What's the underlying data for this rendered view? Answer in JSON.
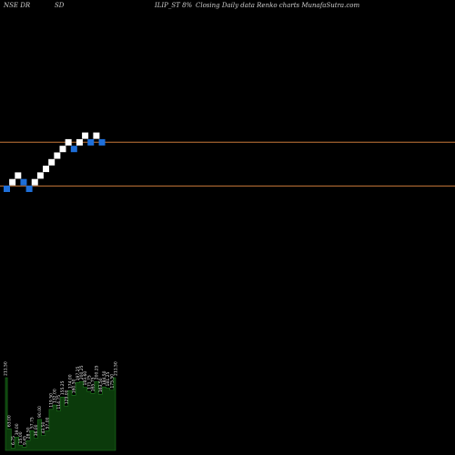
{
  "header": {
    "exchange": "NSE DR",
    "part_sd": "SD",
    "symbol_desc": "ILIP_ST 8%",
    "description": "Closing Daily data Renko charts MunafaSutra.com"
  },
  "colors": {
    "background": "#000000",
    "up_brick": "#ffffff",
    "down_brick": "#1e6fd9",
    "reference_line": "#c8783a",
    "volume_bar": "#0b3a0b",
    "volume_edge": "#1f7a1f"
  },
  "chart_data": {
    "type": "renko",
    "bricks": [
      {
        "dir": "down",
        "col": 0,
        "row": 0
      },
      {
        "dir": "up",
        "col": 1,
        "row": 1
      },
      {
        "dir": "up",
        "col": 2,
        "row": 2
      },
      {
        "dir": "down",
        "col": 3,
        "row": 1
      },
      {
        "dir": "down",
        "col": 4,
        "row": 0
      },
      {
        "dir": "up",
        "col": 5,
        "row": 1
      },
      {
        "dir": "up",
        "col": 6,
        "row": 2
      },
      {
        "dir": "up",
        "col": 7,
        "row": 3
      },
      {
        "dir": "up",
        "col": 8,
        "row": 4
      },
      {
        "dir": "up",
        "col": 9,
        "row": 5
      },
      {
        "dir": "up",
        "col": 10,
        "row": 6
      },
      {
        "dir": "up",
        "col": 11,
        "row": 7
      },
      {
        "dir": "down",
        "col": 12,
        "row": 6
      },
      {
        "dir": "up",
        "col": 13,
        "row": 7
      },
      {
        "dir": "up",
        "col": 14,
        "row": 8
      },
      {
        "dir": "down",
        "col": 15,
        "row": 7
      },
      {
        "dir": "up",
        "col": 16,
        "row": 8
      },
      {
        "dir": "down",
        "col": 17,
        "row": 7
      }
    ],
    "reference_lines": [
      {
        "name": "upper",
        "row": 7.5
      },
      {
        "name": "lower",
        "row": 0.9
      }
    ],
    "volume": {
      "values": [
        211.5,
        63.0,
        6.75,
        39.0,
        15.0,
        9.45,
        28.5,
        57.75,
        36.0,
        90.0,
        43.5,
        57.0,
        119.5,
        132.0,
        114.75,
        155.25,
        129.0,
        174.0,
        160.5,
        197.25,
        200.25,
        183.6,
        171.75,
        165.75,
        200.25,
        163.5,
        184.5,
        181.25,
        175.5,
        211.5
      ],
      "labels": [
        "211.50",
        "63.00",
        "6.75",
        "39.00",
        "15.00",
        "9.45",
        "28.50",
        "57.75",
        "36.00",
        "90.00",
        "43.50",
        "57.00",
        "119.50",
        "132.00",
        "114.75",
        "155.25",
        "129.00",
        "174.00",
        "160.50",
        "197.25",
        "200.25",
        "183.60",
        "171.75",
        "165.75",
        "200.25",
        "163.50",
        "184.50",
        "181.25",
        "175.50",
        "211.50"
      ],
      "max": 211.5
    }
  }
}
